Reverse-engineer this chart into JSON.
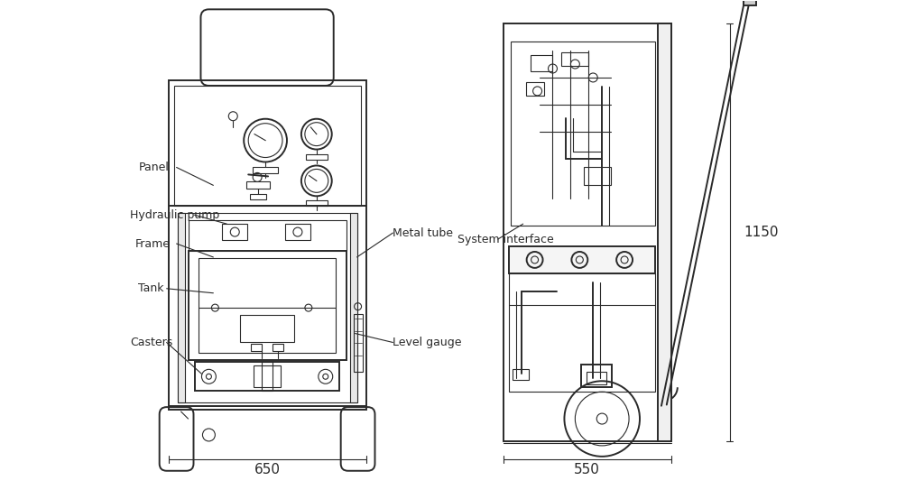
{
  "bg_color": "#ffffff",
  "lc": "#2a2a2a",
  "labels": {
    "panel": "Panel",
    "hydraulic_pump": "Hydraulic pump",
    "frame": "Frame",
    "tank": "Tank",
    "casters": "Casters",
    "metal_tube": "Metal tube",
    "system_interface": "System interface",
    "level_gauge": "Level gauge",
    "dim_650": "650",
    "dim_550": "550",
    "dim_1150": "1150"
  }
}
